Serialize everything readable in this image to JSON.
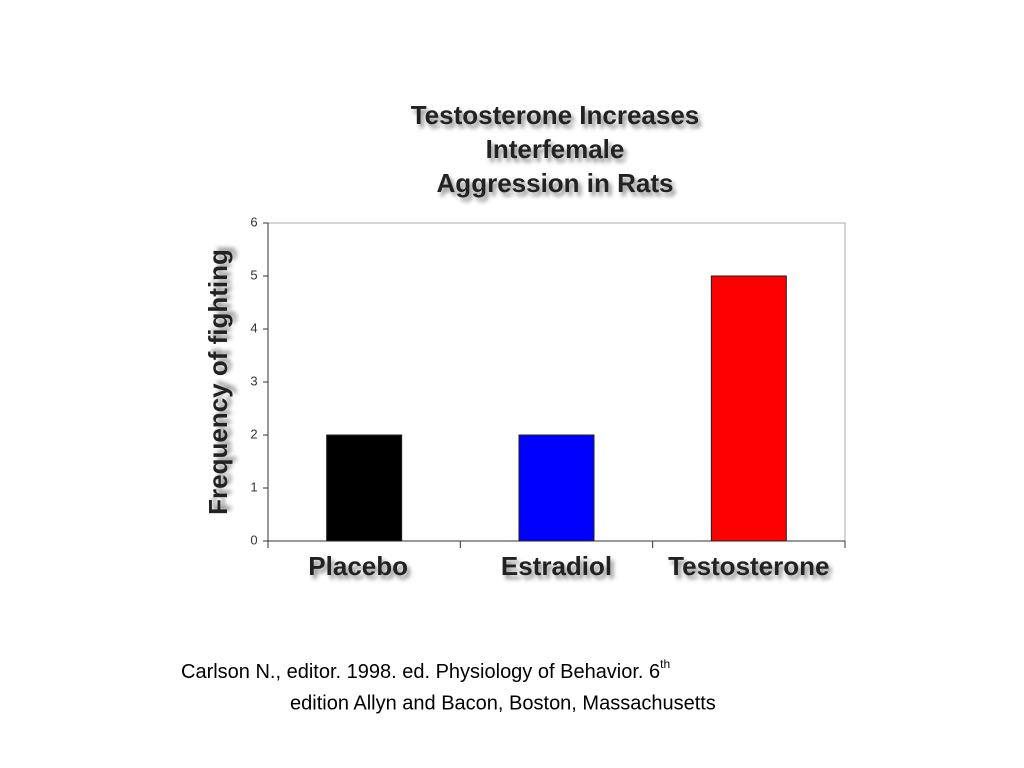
{
  "chart_data": {
    "type": "bar",
    "title": [
      "Testosterone Increases",
      "Interfemale",
      "Aggression in Rats"
    ],
    "y_label": "Frequency of fighting",
    "categories": [
      "Placebo",
      "Estradiol",
      "Testosterone"
    ],
    "values": [
      2,
      2,
      5
    ],
    "colors": [
      "#000000",
      "#0000ff",
      "#ff0000"
    ],
    "ylim": [
      0,
      6
    ],
    "yticks": [
      0,
      1,
      2,
      3,
      4,
      5,
      6
    ]
  },
  "citation": {
    "line1": "Carlson N., editor. 1998.  ed. Physiology of Behavior.  6",
    "superscript": "th",
    "line2": "edition Allyn and Bacon, Boston, Massachusetts"
  }
}
